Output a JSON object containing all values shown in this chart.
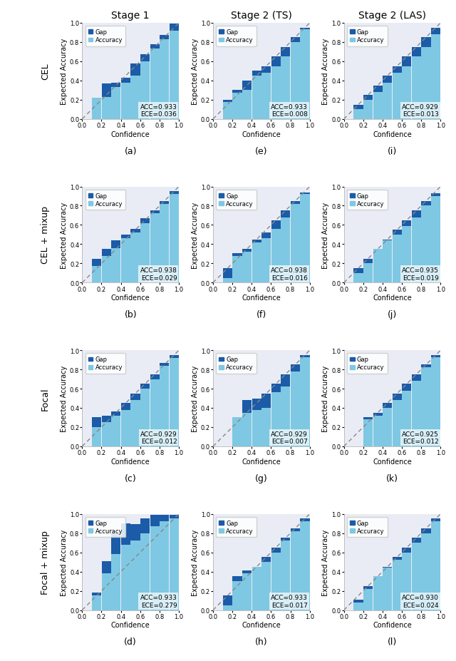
{
  "col_titles": [
    "Stage 1",
    "Stage 2 (TS)",
    "Stage 2 (LAS)"
  ],
  "row_labels": [
    "CEL",
    "CEL + mixup",
    "Focal",
    "Focal + mixup"
  ],
  "sub_labels": [
    [
      "(a)",
      "(e)",
      "(i)"
    ],
    [
      "(b)",
      "(f)",
      "(j)"
    ],
    [
      "(c)",
      "(g)",
      "(k)"
    ],
    [
      "(d)",
      "(h)",
      "(l)"
    ]
  ],
  "acc_ece": [
    [
      [
        "ACC=0.933",
        "ECE=0.036"
      ],
      [
        "ACC=0.933",
        "ECE=0.008"
      ],
      [
        "ACC=0.929",
        "ECE=0.013"
      ]
    ],
    [
      [
        "ACC=0.938",
        "ECE=0.029"
      ],
      [
        "ACC=0.938",
        "ECE=0.016"
      ],
      [
        "ACC=0.935",
        "ECE=0.019"
      ]
    ],
    [
      [
        "ACC=0.929",
        "ECE=0.012"
      ],
      [
        "ACC=0.929",
        "ECE=0.007"
      ],
      [
        "ACC=0.925",
        "ECE=0.012"
      ]
    ],
    [
      [
        "ACC=0.933",
        "ECE=0.279"
      ],
      [
        "ACC=0.933",
        "ECE=0.017"
      ],
      [
        "ACC=0.930",
        "ECE=0.024"
      ]
    ]
  ],
  "confidence_bins": [
    0.1,
    0.2,
    0.3,
    0.4,
    0.5,
    0.6,
    0.7,
    0.8,
    0.9,
    1.0
  ],
  "accuracy_data": {
    "0_0": [
      0.0,
      0.22,
      0.23,
      0.33,
      0.38,
      0.45,
      0.6,
      0.73,
      0.83,
      0.92
    ],
    "0_1": [
      0.0,
      0.18,
      0.27,
      0.3,
      0.45,
      0.48,
      0.55,
      0.65,
      0.8,
      0.93
    ],
    "0_2": [
      0.0,
      0.1,
      0.2,
      0.28,
      0.38,
      0.48,
      0.55,
      0.65,
      0.75,
      0.88
    ],
    "1_0": [
      0.0,
      0.17,
      0.28,
      0.36,
      0.46,
      0.52,
      0.62,
      0.72,
      0.82,
      0.92
    ],
    "1_1": [
      0.0,
      0.05,
      0.28,
      0.32,
      0.42,
      0.46,
      0.56,
      0.68,
      0.82,
      0.92
    ],
    "1_2": [
      0.0,
      0.1,
      0.2,
      0.35,
      0.44,
      0.5,
      0.59,
      0.68,
      0.8,
      0.9
    ],
    "2_0": [
      0.0,
      0.2,
      0.25,
      0.32,
      0.38,
      0.48,
      0.6,
      0.7,
      0.84,
      0.92
    ],
    "2_1": [
      0.0,
      0.0,
      0.3,
      0.35,
      0.38,
      0.4,
      0.56,
      0.62,
      0.78,
      0.93
    ],
    "2_2": [
      0.0,
      0.0,
      0.28,
      0.32,
      0.4,
      0.48,
      0.58,
      0.68,
      0.82,
      0.93
    ],
    "3_0": [
      0.0,
      0.15,
      0.38,
      0.58,
      0.68,
      0.72,
      0.8,
      0.87,
      0.92,
      0.95
    ],
    "3_1": [
      0.0,
      0.05,
      0.3,
      0.38,
      0.45,
      0.5,
      0.6,
      0.72,
      0.82,
      0.92
    ],
    "3_2": [
      0.0,
      0.08,
      0.22,
      0.35,
      0.44,
      0.52,
      0.6,
      0.7,
      0.8,
      0.92
    ]
  },
  "gap_data": {
    "0_0": [
      0.0,
      0.0,
      0.14,
      0.05,
      0.05,
      0.13,
      0.07,
      0.05,
      0.04,
      0.07
    ],
    "0_1": [
      0.0,
      0.02,
      0.03,
      0.1,
      0.05,
      0.07,
      0.1,
      0.1,
      0.05,
      0.02
    ],
    "0_2": [
      0.0,
      0.05,
      0.05,
      0.07,
      0.07,
      0.07,
      0.1,
      0.1,
      0.1,
      0.07
    ],
    "1_0": [
      0.0,
      0.08,
      0.07,
      0.08,
      0.04,
      0.04,
      0.05,
      0.03,
      0.03,
      0.03
    ],
    "1_1": [
      0.0,
      0.1,
      0.03,
      0.03,
      0.03,
      0.06,
      0.09,
      0.07,
      0.03,
      0.02
    ],
    "1_2": [
      0.0,
      0.05,
      0.05,
      0.0,
      0.01,
      0.05,
      0.06,
      0.07,
      0.05,
      0.03
    ],
    "2_0": [
      0.0,
      0.1,
      0.07,
      0.04,
      0.07,
      0.07,
      0.05,
      0.05,
      0.03,
      0.03
    ],
    "2_1": [
      0.0,
      0.0,
      0.0,
      0.13,
      0.12,
      0.15,
      0.09,
      0.13,
      0.07,
      0.02
    ],
    "2_2": [
      0.0,
      0.0,
      0.02,
      0.03,
      0.05,
      0.07,
      0.07,
      0.07,
      0.03,
      0.02
    ],
    "3_0": [
      0.0,
      0.03,
      0.13,
      0.22,
      0.22,
      0.17,
      0.15,
      0.12,
      0.07,
      0.04
    ],
    "3_1": [
      0.0,
      0.1,
      0.05,
      0.03,
      0.0,
      0.05,
      0.05,
      0.03,
      0.03,
      0.03
    ],
    "3_2": [
      0.0,
      0.03,
      0.03,
      0.0,
      0.01,
      0.03,
      0.05,
      0.05,
      0.05,
      0.03
    ]
  },
  "bar_width": 0.097,
  "color_accuracy": "#7EC8E3",
  "color_gap": "#1B5BA8",
  "color_diagonal": "#888888",
  "bg_color": "#E9ECF5",
  "title_fontsize": 10,
  "label_fontsize": 7,
  "tick_fontsize": 6,
  "annot_fontsize": 6.5,
  "row_label_fontsize": 9,
  "sublabel_fontsize": 9
}
